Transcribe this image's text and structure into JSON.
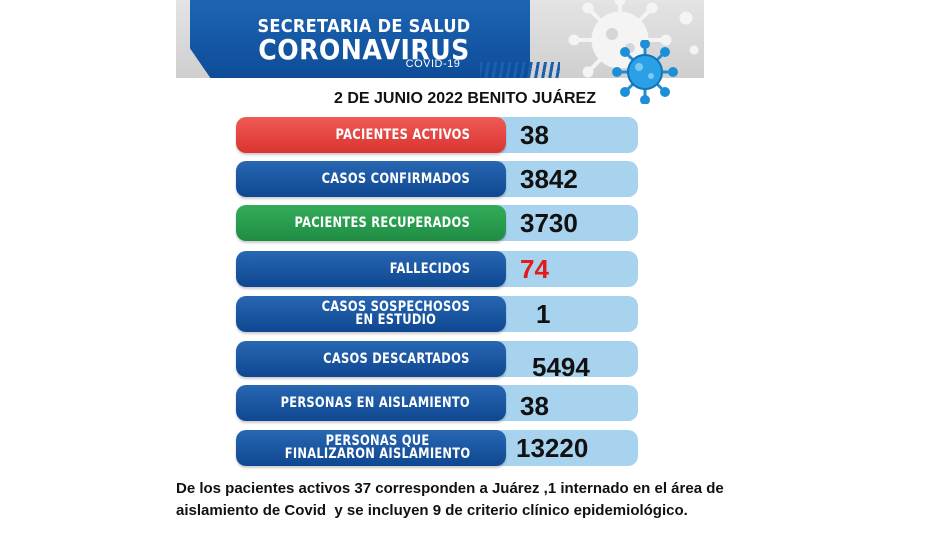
{
  "header": {
    "title_small": "SECRETARIA DE SALUD",
    "title_big": "CORONAVIRUS",
    "subtitle": "COVID-19",
    "colors": {
      "banner": "#1565b4",
      "virus_blue": "#1e8fd6"
    }
  },
  "date_line": "2 DE JUNIO 2022 BENITO JUÁREZ",
  "stats": [
    {
      "label": "PACIENTES ACTIVOS",
      "value": "38",
      "color": "red"
    },
    {
      "label": "CASOS CONFIRMADOS",
      "value": "3842",
      "color": "blue"
    },
    {
      "label": "PACIENTES RECUPERADOS",
      "value": "3730",
      "color": "green"
    },
    {
      "label": "FALLECIDOS",
      "value": "74",
      "color": "blue",
      "value_color": "red"
    },
    {
      "label_line1": "CASOS SOSPECHOSOS",
      "label_line2": "EN ESTUDIO",
      "value": "1",
      "color": "blue"
    },
    {
      "label": "CASOS DESCARTADOS",
      "value": "5494",
      "color": "blue"
    },
    {
      "label": "PERSONAS EN AISLAMIENTO",
      "value": "38",
      "color": "blue"
    },
    {
      "label_line1": "PERSONAS QUE",
      "label_line2": "FINALIZARON AISLAMIENTO",
      "value": "13220",
      "color": "blue"
    }
  ],
  "footer": {
    "line1": "De los pacientes activos 37 corresponden a Juárez ,1 internado en el área de",
    "line2": "aislamiento de Covid  y se incluyen 9 de criterio clínico epidemiológico."
  }
}
